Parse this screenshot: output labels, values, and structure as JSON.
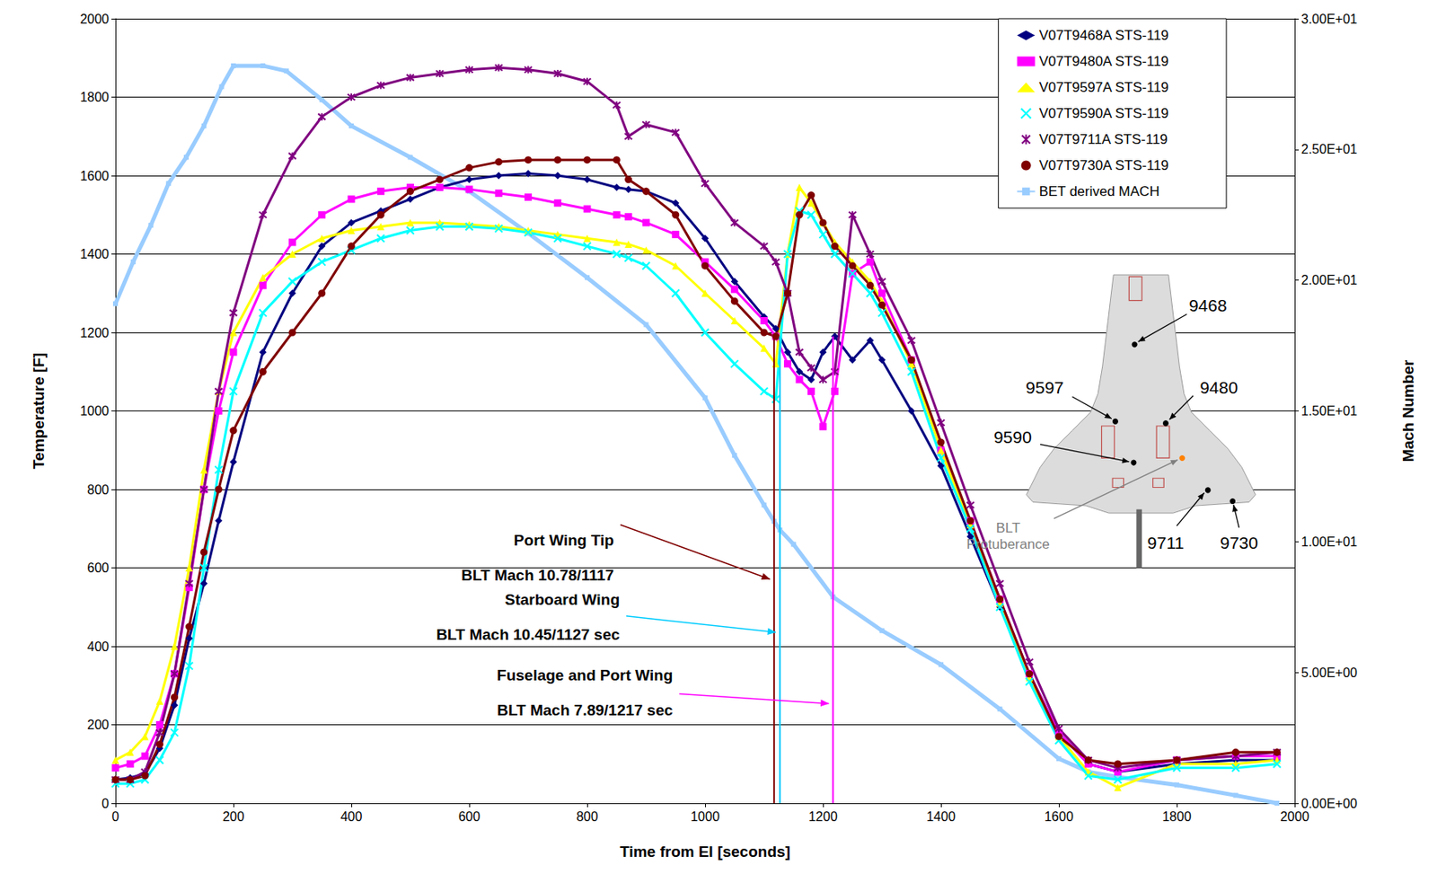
{
  "chart_data": {
    "type": "line",
    "x_label": "Time from EI [seconds]",
    "y_label": "Temperature [F]",
    "y2_label": "Mach Number",
    "xlim": [
      0,
      2000
    ],
    "xticks": [
      0,
      200,
      400,
      600,
      800,
      1000,
      1200,
      1400,
      1600,
      1800,
      2000
    ],
    "ylim": [
      0,
      2000
    ],
    "yticks": [
      0,
      200,
      400,
      600,
      800,
      1000,
      1200,
      1400,
      1600,
      1800,
      2000
    ],
    "y2lim": [
      0,
      30
    ],
    "y2ticks": [
      {
        "value": 0,
        "label": "0.00E+00"
      },
      {
        "value": 5,
        "label": "5.00E+00"
      },
      {
        "value": 10,
        "label": "1.00E+01"
      },
      {
        "value": 15,
        "label": "1.50E+01"
      },
      {
        "value": 20,
        "label": "2.00E+01"
      },
      {
        "value": 25,
        "label": "2.50E+01"
      },
      {
        "value": 30,
        "label": "3.00E+01"
      }
    ],
    "grid": true,
    "legend": "upper right",
    "series": [
      {
        "name": "V07T9468A STS-119",
        "color": "#000080",
        "marker": "diamond",
        "x": [
          0,
          25,
          50,
          75,
          100,
          125,
          150,
          175,
          200,
          250,
          300,
          350,
          400,
          450,
          500,
          550,
          600,
          650,
          700,
          750,
          800,
          850,
          870,
          900,
          950,
          1000,
          1050,
          1100,
          1120,
          1140,
          1160,
          1180,
          1200,
          1220,
          1250,
          1280,
          1300,
          1350,
          1400,
          1450,
          1500,
          1550,
          1600,
          1650,
          1700,
          1800,
          1900,
          1970
        ],
        "values": [
          60,
          65,
          75,
          140,
          250,
          420,
          560,
          720,
          870,
          1150,
          1300,
          1420,
          1480,
          1510,
          1540,
          1570,
          1590,
          1600,
          1605,
          1600,
          1590,
          1570,
          1565,
          1560,
          1530,
          1440,
          1330,
          1240,
          1210,
          1150,
          1100,
          1080,
          1150,
          1190,
          1130,
          1180,
          1130,
          1000,
          860,
          680,
          500,
          330,
          180,
          100,
          80,
          100,
          110,
          110
        ]
      },
      {
        "name": "V07T9480A STS-119",
        "color": "#ff00ff",
        "marker": "square",
        "x": [
          0,
          25,
          50,
          75,
          100,
          125,
          150,
          175,
          200,
          250,
          300,
          350,
          400,
          450,
          500,
          550,
          600,
          650,
          700,
          750,
          800,
          850,
          870,
          900,
          950,
          1000,
          1050,
          1100,
          1120,
          1140,
          1160,
          1180,
          1200,
          1220,
          1250,
          1280,
          1300,
          1350,
          1400,
          1450,
          1500,
          1550,
          1600,
          1650,
          1700,
          1800,
          1900,
          1970
        ],
        "values": [
          90,
          100,
          120,
          200,
          330,
          550,
          800,
          1000,
          1150,
          1320,
          1430,
          1500,
          1540,
          1560,
          1570,
          1570,
          1565,
          1555,
          1545,
          1530,
          1515,
          1500,
          1495,
          1480,
          1450,
          1380,
          1310,
          1230,
          1190,
          1120,
          1080,
          1050,
          960,
          1050,
          1350,
          1380,
          1300,
          1130,
          900,
          720,
          520,
          330,
          180,
          100,
          80,
          110,
          120,
          120
        ]
      },
      {
        "name": "V07T9597A STS-119",
        "color": "#ffff00",
        "marker": "triangle",
        "x": [
          0,
          25,
          50,
          75,
          100,
          125,
          150,
          175,
          200,
          250,
          300,
          350,
          400,
          450,
          500,
          550,
          600,
          650,
          700,
          750,
          800,
          850,
          870,
          900,
          950,
          1000,
          1050,
          1100,
          1120,
          1140,
          1160,
          1180,
          1200,
          1220,
          1250,
          1280,
          1300,
          1350,
          1400,
          1450,
          1500,
          1550,
          1600,
          1650,
          1700,
          1800,
          1900,
          1970
        ],
        "values": [
          110,
          130,
          170,
          260,
          400,
          600,
          850,
          1050,
          1200,
          1340,
          1400,
          1440,
          1460,
          1470,
          1480,
          1480,
          1475,
          1470,
          1460,
          1450,
          1440,
          1430,
          1425,
          1410,
          1370,
          1300,
          1230,
          1160,
          1120,
          1400,
          1570,
          1530,
          1480,
          1430,
          1380,
          1330,
          1280,
          1120,
          900,
          710,
          510,
          320,
          170,
          80,
          40,
          100,
          100,
          110
        ]
      },
      {
        "name": "V07T9590A STS-119",
        "color": "#00ffff",
        "marker": "x",
        "x": [
          0,
          25,
          50,
          75,
          100,
          125,
          150,
          175,
          200,
          250,
          300,
          350,
          400,
          450,
          500,
          550,
          600,
          650,
          700,
          750,
          800,
          850,
          870,
          900,
          950,
          1000,
          1050,
          1100,
          1120,
          1140,
          1160,
          1180,
          1200,
          1220,
          1250,
          1280,
          1300,
          1350,
          1400,
          1450,
          1500,
          1550,
          1600,
          1650,
          1700,
          1800,
          1900,
          1970
        ],
        "values": [
          50,
          50,
          60,
          110,
          180,
          350,
          600,
          850,
          1050,
          1250,
          1330,
          1380,
          1410,
          1440,
          1460,
          1470,
          1470,
          1465,
          1455,
          1440,
          1420,
          1400,
          1390,
          1370,
          1300,
          1200,
          1120,
          1050,
          1030,
          1400,
          1510,
          1500,
          1450,
          1400,
          1350,
          1300,
          1250,
          1100,
          880,
          700,
          500,
          310,
          160,
          70,
          60,
          90,
          90,
          100
        ]
      },
      {
        "name": "V07T9711A STS-119",
        "color": "#800080",
        "marker": "star",
        "x": [
          0,
          25,
          50,
          75,
          100,
          125,
          150,
          175,
          200,
          250,
          300,
          350,
          400,
          450,
          500,
          550,
          600,
          650,
          700,
          750,
          800,
          850,
          870,
          900,
          950,
          1000,
          1050,
          1100,
          1120,
          1140,
          1160,
          1180,
          1200,
          1220,
          1250,
          1280,
          1300,
          1350,
          1400,
          1450,
          1500,
          1550,
          1600,
          1650,
          1700,
          1800,
          1900,
          1970
        ],
        "values": [
          60,
          60,
          80,
          180,
          330,
          560,
          800,
          1050,
          1250,
          1500,
          1650,
          1750,
          1800,
          1830,
          1850,
          1860,
          1870,
          1875,
          1870,
          1860,
          1840,
          1780,
          1700,
          1730,
          1710,
          1580,
          1480,
          1420,
          1380,
          1300,
          1150,
          1110,
          1080,
          1100,
          1500,
          1400,
          1330,
          1180,
          970,
          760,
          560,
          360,
          190,
          110,
          90,
          110,
          120,
          130
        ]
      },
      {
        "name": "V07T9730A STS-119",
        "color": "#800000",
        "marker": "circle",
        "x": [
          0,
          25,
          50,
          75,
          100,
          125,
          150,
          175,
          200,
          250,
          300,
          350,
          400,
          450,
          500,
          550,
          600,
          650,
          700,
          750,
          800,
          850,
          870,
          900,
          950,
          1000,
          1050,
          1100,
          1120,
          1140,
          1160,
          1180,
          1200,
          1220,
          1250,
          1280,
          1300,
          1350,
          1400,
          1450,
          1500,
          1550,
          1600,
          1650,
          1700,
          1800,
          1900,
          1970
        ],
        "values": [
          60,
          60,
          70,
          150,
          270,
          450,
          640,
          800,
          950,
          1100,
          1200,
          1300,
          1420,
          1500,
          1560,
          1590,
          1620,
          1635,
          1640,
          1640,
          1640,
          1640,
          1590,
          1560,
          1500,
          1370,
          1280,
          1200,
          1190,
          1300,
          1500,
          1550,
          1480,
          1420,
          1370,
          1320,
          1270,
          1130,
          920,
          720,
          520,
          330,
          170,
          110,
          100,
          110,
          130,
          130
        ]
      },
      {
        "name": "BET derived MACH",
        "color": "#99ccff",
        "marker": "square",
        "line_style": "solid",
        "axis": "y2",
        "x": [
          0,
          30,
          60,
          90,
          120,
          150,
          180,
          200,
          250,
          290,
          350,
          400,
          500,
          600,
          700,
          800,
          900,
          1000,
          1050,
          1100,
          1117,
          1127,
          1150,
          1217,
          1300,
          1400,
          1500,
          1600,
          1650,
          1700,
          1800,
          1900,
          1970
        ],
        "values": [
          19.1,
          20.7,
          22.1,
          23.7,
          24.7,
          25.9,
          27.4,
          28.2,
          28.2,
          28.0,
          26.9,
          25.9,
          24.7,
          23.4,
          21.8,
          20.1,
          18.3,
          15.5,
          13.3,
          11.4,
          10.78,
          10.45,
          9.9,
          7.89,
          6.6,
          5.3,
          3.6,
          1.7,
          1.2,
          1.0,
          0.7,
          0.3,
          0
        ]
      }
    ],
    "annotations": [
      {
        "text": [
          "Port Wing Tip",
          "BLT Mach 10.78/1117"
        ],
        "x": 1117,
        "color": "#800000"
      },
      {
        "text": [
          "Starboard Wing",
          "BLT Mach 10.45/1127 sec"
        ],
        "x": 1127,
        "color": "#00ccff"
      },
      {
        "text": [
          "Fuselage and Port Wing",
          "BLT Mach 7.89/1217 sec"
        ],
        "x": 1217,
        "color": "#ff00ff"
      }
    ],
    "inset": {
      "labels": [
        "9468",
        "9597",
        "9480",
        "9590",
        "9711",
        "9730",
        "BLT Protuberance"
      ]
    }
  }
}
